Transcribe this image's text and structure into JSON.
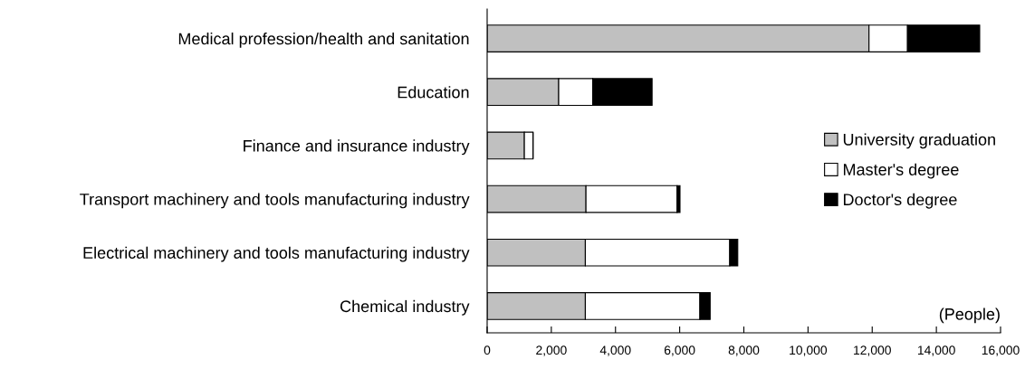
{
  "chart_data": {
    "type": "bar",
    "orientation": "horizontal",
    "stacked": true,
    "categories": [
      "Medical profession/health and sanitation",
      "Education",
      "Finance and insurance industry",
      "Transport machinery and tools manufacturing industry",
      "Electrical machinery and tools manufacturing industry",
      "Chemical industry"
    ],
    "series": [
      {
        "name": "University graduation",
        "color": "#c0c0c0",
        "values": [
          11900,
          2230,
          1160,
          3080,
          3060,
          3060
        ]
      },
      {
        "name": "Master's degree",
        "color": "#ffffff",
        "values": [
          1200,
          1060,
          270,
          2840,
          4500,
          3570
        ]
      },
      {
        "name": "Doctor's degree",
        "color": "#000000",
        "values": [
          2250,
          1850,
          0,
          90,
          250,
          320
        ]
      }
    ],
    "xlim": [
      0,
      16000
    ],
    "xticks": [
      {
        "value": 0,
        "label": "0"
      },
      {
        "value": 2000,
        "label": "2,000"
      },
      {
        "value": 4000,
        "label": "4,000"
      },
      {
        "value": 6000,
        "label": "6,000"
      },
      {
        "value": 8000,
        "label": "8,000"
      },
      {
        "value": 10000,
        "label": "10,000"
      },
      {
        "value": 12000,
        "label": "12,000"
      },
      {
        "value": 14000,
        "label": "14,000"
      },
      {
        "value": 16000,
        "label": "16,000"
      }
    ],
    "annotations": [
      "(People)"
    ],
    "grid": false,
    "legend": "right"
  }
}
